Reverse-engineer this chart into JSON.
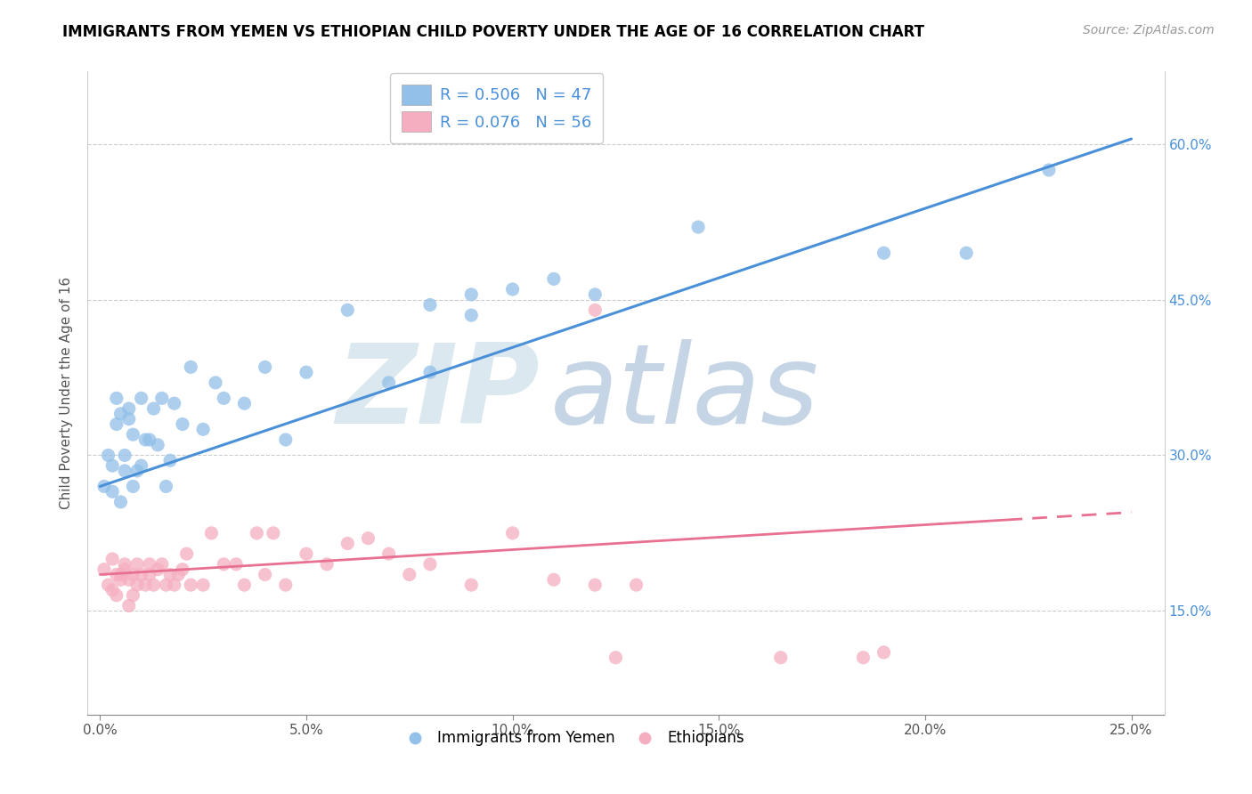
{
  "title": "IMMIGRANTS FROM YEMEN VS ETHIOPIAN CHILD POVERTY UNDER THE AGE OF 16 CORRELATION CHART",
  "source": "Source: ZipAtlas.com",
  "ylabel": "Child Poverty Under the Age of 16",
  "xlabel_ticks": [
    "0.0%",
    "5.0%",
    "10.0%",
    "15.0%",
    "20.0%",
    "25.0%"
  ],
  "xlabel_vals": [
    0.0,
    0.05,
    0.1,
    0.15,
    0.2,
    0.25
  ],
  "ylabel_ticks": [
    "15.0%",
    "30.0%",
    "45.0%",
    "60.0%"
  ],
  "ylabel_vals": [
    0.15,
    0.3,
    0.45,
    0.6
  ],
  "ylim": [
    0.05,
    0.67
  ],
  "xlim": [
    -0.003,
    0.258
  ],
  "legend_series1": "Immigrants from Yemen",
  "legend_series2": "Ethiopians",
  "R1": 0.506,
  "N1": 47,
  "R2": 0.076,
  "N2": 56,
  "color_blue": "#92C0E8",
  "color_pink": "#F5AEBF",
  "line_blue": "#4A90D9",
  "line_pink": "#E87090",
  "watermark_zip": "ZIP",
  "watermark_atlas": "atlas",
  "watermark_color_zip": "#E0E8F0",
  "watermark_color_atlas": "#C8D8E8",
  "blue_x": [
    0.001,
    0.002,
    0.003,
    0.003,
    0.004,
    0.004,
    0.005,
    0.005,
    0.006,
    0.006,
    0.007,
    0.007,
    0.008,
    0.008,
    0.009,
    0.01,
    0.01,
    0.011,
    0.012,
    0.013,
    0.014,
    0.015,
    0.016,
    0.017,
    0.018,
    0.02,
    0.022,
    0.025,
    0.028,
    0.03,
    0.035,
    0.04,
    0.045,
    0.05,
    0.06,
    0.07,
    0.08,
    0.09,
    0.1,
    0.11,
    0.12,
    0.145,
    0.08,
    0.09,
    0.19,
    0.21,
    0.23
  ],
  "blue_y": [
    0.27,
    0.3,
    0.265,
    0.29,
    0.33,
    0.355,
    0.34,
    0.255,
    0.285,
    0.3,
    0.335,
    0.345,
    0.27,
    0.32,
    0.285,
    0.29,
    0.355,
    0.315,
    0.315,
    0.345,
    0.31,
    0.355,
    0.27,
    0.295,
    0.35,
    0.33,
    0.385,
    0.325,
    0.37,
    0.355,
    0.35,
    0.385,
    0.315,
    0.38,
    0.44,
    0.37,
    0.445,
    0.455,
    0.46,
    0.47,
    0.455,
    0.52,
    0.38,
    0.435,
    0.495,
    0.495,
    0.575
  ],
  "pink_x": [
    0.001,
    0.002,
    0.003,
    0.003,
    0.004,
    0.004,
    0.005,
    0.005,
    0.006,
    0.006,
    0.007,
    0.007,
    0.008,
    0.008,
    0.009,
    0.009,
    0.01,
    0.011,
    0.012,
    0.012,
    0.013,
    0.014,
    0.015,
    0.016,
    0.017,
    0.018,
    0.019,
    0.02,
    0.021,
    0.022,
    0.025,
    0.027,
    0.03,
    0.033,
    0.035,
    0.038,
    0.04,
    0.042,
    0.045,
    0.05,
    0.055,
    0.06,
    0.065,
    0.07,
    0.075,
    0.08,
    0.09,
    0.1,
    0.11,
    0.12,
    0.13,
    0.12,
    0.125,
    0.165,
    0.185,
    0.19
  ],
  "pink_y": [
    0.19,
    0.175,
    0.17,
    0.2,
    0.165,
    0.185,
    0.18,
    0.185,
    0.19,
    0.195,
    0.155,
    0.18,
    0.165,
    0.185,
    0.175,
    0.195,
    0.185,
    0.175,
    0.185,
    0.195,
    0.175,
    0.19,
    0.195,
    0.175,
    0.185,
    0.175,
    0.185,
    0.19,
    0.205,
    0.175,
    0.175,
    0.225,
    0.195,
    0.195,
    0.175,
    0.225,
    0.185,
    0.225,
    0.175,
    0.205,
    0.195,
    0.215,
    0.22,
    0.205,
    0.185,
    0.195,
    0.175,
    0.225,
    0.18,
    0.175,
    0.175,
    0.44,
    0.105,
    0.105,
    0.105,
    0.11
  ],
  "line1_x0": 0.0,
  "line1_y0": 0.27,
  "line1_x1": 0.25,
  "line1_y1": 0.605,
  "line2_x0": 0.0,
  "line2_y0": 0.185,
  "line2_x1": 0.25,
  "line2_y1": 0.245
}
